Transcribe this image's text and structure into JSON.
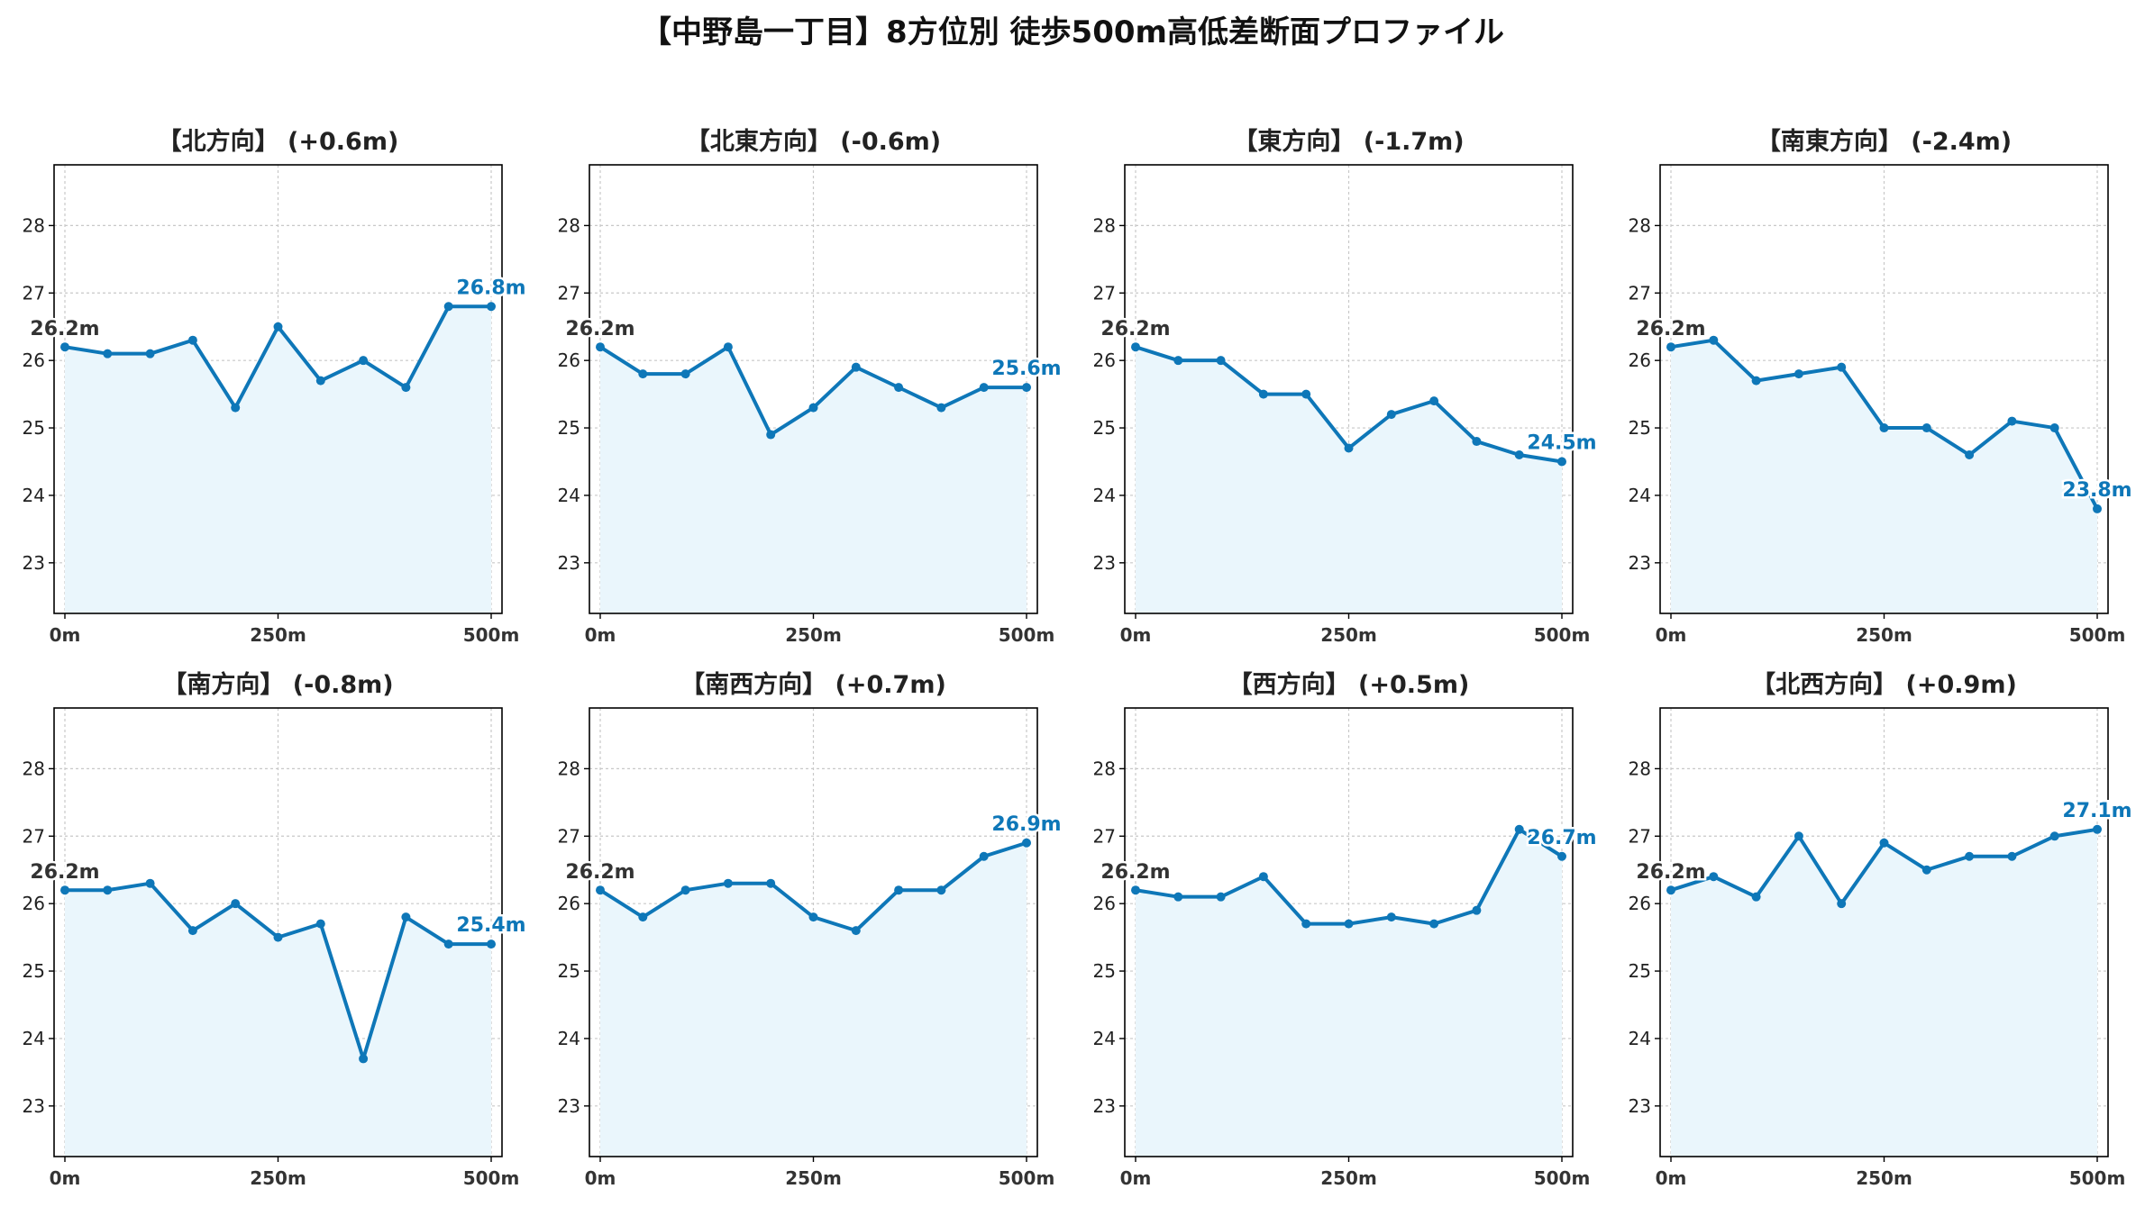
{
  "title": "【中野島一丁目】8方位別 徒歩500m高低差断面プロファイル",
  "style": {
    "line_color": "#0e77b8",
    "fill_color": "#eaf6fc",
    "grid_color": "#c8c8c8",
    "start_label_color": "#333333"
  },
  "chart_data": [
    {
      "type": "area",
      "title": "【北方向】 (+0.6m)",
      "x": [
        0,
        50,
        100,
        150,
        200,
        250,
        300,
        350,
        400,
        450,
        500
      ],
      "x_ticks": [
        "0m",
        "250m",
        "500m"
      ],
      "y_ticks": [
        23,
        24,
        25,
        26,
        27,
        28
      ],
      "ylim": [
        22.25,
        28.9
      ],
      "grid": true,
      "values": [
        26.2,
        26.1,
        26.1,
        26.3,
        25.3,
        26.5,
        25.7,
        26.0,
        25.6,
        26.8,
        26.8
      ],
      "start_label": "26.2m",
      "end_label": "26.8m"
    },
    {
      "type": "area",
      "title": "【北東方向】 (-0.6m)",
      "x": [
        0,
        50,
        100,
        150,
        200,
        250,
        300,
        350,
        400,
        450,
        500
      ],
      "x_ticks": [
        "0m",
        "250m",
        "500m"
      ],
      "y_ticks": [
        23,
        24,
        25,
        26,
        27,
        28
      ],
      "ylim": [
        22.25,
        28.9
      ],
      "grid": true,
      "values": [
        26.2,
        25.8,
        25.8,
        26.2,
        24.9,
        25.3,
        25.9,
        25.6,
        25.3,
        25.6,
        25.6
      ],
      "start_label": "26.2m",
      "end_label": "25.6m"
    },
    {
      "type": "area",
      "title": "【東方向】 (-1.7m)",
      "x": [
        0,
        50,
        100,
        150,
        200,
        250,
        300,
        350,
        400,
        450,
        500
      ],
      "x_ticks": [
        "0m",
        "250m",
        "500m"
      ],
      "y_ticks": [
        23,
        24,
        25,
        26,
        27,
        28
      ],
      "ylim": [
        22.25,
        28.9
      ],
      "grid": true,
      "values": [
        26.2,
        26.0,
        26.0,
        25.5,
        25.5,
        24.7,
        25.2,
        25.4,
        24.8,
        24.6,
        24.5
      ],
      "start_label": "26.2m",
      "end_label": "24.5m"
    },
    {
      "type": "area",
      "title": "【南東方向】 (-2.4m)",
      "x": [
        0,
        50,
        100,
        150,
        200,
        250,
        300,
        350,
        400,
        450,
        500
      ],
      "x_ticks": [
        "0m",
        "250m",
        "500m"
      ],
      "y_ticks": [
        23,
        24,
        25,
        26,
        27,
        28
      ],
      "ylim": [
        22.25,
        28.9
      ],
      "grid": true,
      "values": [
        26.2,
        26.3,
        25.7,
        25.8,
        25.9,
        25.0,
        25.0,
        24.6,
        25.1,
        25.0,
        23.8
      ],
      "start_label": "26.2m",
      "end_label": "23.8m"
    },
    {
      "type": "area",
      "title": "【南方向】 (-0.8m)",
      "x": [
        0,
        50,
        100,
        150,
        200,
        250,
        300,
        350,
        400,
        450,
        500
      ],
      "x_ticks": [
        "0m",
        "250m",
        "500m"
      ],
      "y_ticks": [
        23,
        24,
        25,
        26,
        27,
        28
      ],
      "ylim": [
        22.25,
        28.9
      ],
      "grid": true,
      "values": [
        26.2,
        26.2,
        26.3,
        25.6,
        26.0,
        25.5,
        25.7,
        23.7,
        25.8,
        25.4,
        25.4
      ],
      "start_label": "26.2m",
      "end_label": "25.4m"
    },
    {
      "type": "area",
      "title": "【南西方向】 (+0.7m)",
      "x": [
        0,
        50,
        100,
        150,
        200,
        250,
        300,
        350,
        400,
        450,
        500
      ],
      "x_ticks": [
        "0m",
        "250m",
        "500m"
      ],
      "y_ticks": [
        23,
        24,
        25,
        26,
        27,
        28
      ],
      "ylim": [
        22.25,
        28.9
      ],
      "grid": true,
      "values": [
        26.2,
        25.8,
        26.2,
        26.3,
        26.3,
        25.8,
        25.6,
        26.2,
        26.2,
        26.7,
        26.9
      ],
      "start_label": "26.2m",
      "end_label": "26.9m"
    },
    {
      "type": "area",
      "title": "【西方向】 (+0.5m)",
      "x": [
        0,
        50,
        100,
        150,
        200,
        250,
        300,
        350,
        400,
        450,
        500
      ],
      "x_ticks": [
        "0m",
        "250m",
        "500m"
      ],
      "y_ticks": [
        23,
        24,
        25,
        26,
        27,
        28
      ],
      "ylim": [
        22.25,
        28.9
      ],
      "grid": true,
      "values": [
        26.2,
        26.1,
        26.1,
        26.4,
        25.7,
        25.7,
        25.8,
        25.7,
        25.9,
        27.1,
        26.7
      ],
      "start_label": "26.2m",
      "end_label": "26.7m"
    },
    {
      "type": "area",
      "title": "【北西方向】 (+0.9m)",
      "x": [
        0,
        50,
        100,
        150,
        200,
        250,
        300,
        350,
        400,
        450,
        500
      ],
      "x_ticks": [
        "0m",
        "250m",
        "500m"
      ],
      "y_ticks": [
        23,
        24,
        25,
        26,
        27,
        28
      ],
      "ylim": [
        22.25,
        28.9
      ],
      "grid": true,
      "values": [
        26.2,
        26.4,
        26.1,
        27.0,
        26.0,
        26.9,
        26.5,
        26.7,
        26.7,
        27.0,
        27.1
      ],
      "start_label": "26.2m",
      "end_label": "27.1m"
    }
  ]
}
